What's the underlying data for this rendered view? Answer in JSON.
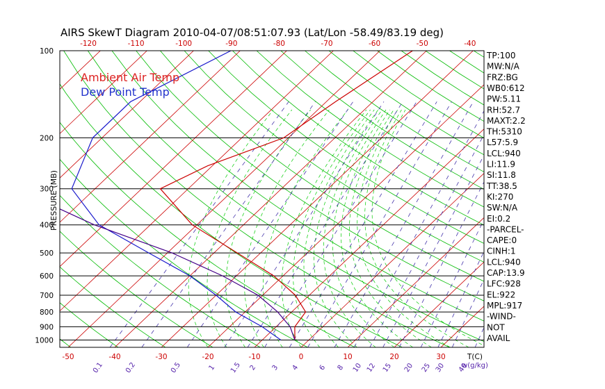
{
  "chart_data": {
    "type": "line",
    "title": "AIRS SkewT Diagram 2010-04-07/08:51:07.93 (Lat/Lon -58.49/83.19 deg)",
    "ylabel": "PRESSURE (MB)",
    "xlabel_unit": "T(C)",
    "mixing_ratio_unit": "w(g/kg)",
    "pressure_ticks": [
      100,
      200,
      300,
      400,
      500,
      600,
      700,
      800,
      900,
      1000
    ],
    "top_temp_ticks": [
      "-120",
      "-110",
      "-100",
      "-90",
      "-80",
      "-70",
      "-60",
      "-50",
      "-40"
    ],
    "bottom_temp_ticks": [
      "-50",
      "-40",
      "-30",
      "-20",
      "-10",
      "0",
      "10",
      "20",
      "30"
    ],
    "mixing_ratio_ticks": [
      "0.1",
      "0.2",
      "0.5",
      "1",
      "1.5",
      "2",
      "3",
      "4",
      "6",
      "8",
      "10",
      "12",
      "15",
      "20",
      "25",
      "30",
      "40"
    ],
    "legend": [
      {
        "name": "Ambient Air Temp",
        "color": "#dd2222"
      },
      {
        "name": "Dew Point Temp",
        "color": "#2233cc"
      }
    ],
    "series": [
      {
        "name": "Ambient Air Temp",
        "color": "#cc0000",
        "points": [
          [
            100,
            -43
          ],
          [
            150,
            -48
          ],
          [
            200,
            -51
          ],
          [
            250,
            -61
          ],
          [
            300,
            -66
          ],
          [
            400,
            -51
          ],
          [
            500,
            -35
          ],
          [
            600,
            -22
          ],
          [
            700,
            -13
          ],
          [
            800,
            -7
          ],
          [
            900,
            -6
          ],
          [
            1000,
            -3
          ]
        ]
      },
      {
        "name": "Dew Point Temp",
        "color": "#1a1acc",
        "points": [
          [
            100,
            -82
          ],
          [
            150,
            -92
          ],
          [
            200,
            -92
          ],
          [
            300,
            -85
          ],
          [
            400,
            -71
          ],
          [
            500,
            -54
          ],
          [
            600,
            -40
          ],
          [
            700,
            -30
          ],
          [
            800,
            -22
          ],
          [
            900,
            -13
          ],
          [
            1000,
            -6
          ]
        ]
      },
      {
        "name": "Parcel",
        "color": "#440088",
        "points": [
          [
            100,
            -140
          ],
          [
            150,
            -126
          ],
          [
            200,
            -119
          ],
          [
            300,
            -97
          ],
          [
            400,
            -72
          ],
          [
            500,
            -49
          ],
          [
            600,
            -33
          ],
          [
            700,
            -21
          ],
          [
            800,
            -13
          ],
          [
            900,
            -7
          ],
          [
            1000,
            -3
          ]
        ]
      }
    ],
    "grid": true
  },
  "stats": [
    "TP:100",
    "MW:N/A",
    "FRZ:BG",
    "WB0:612",
    "PW:5.11",
    "RH:52.7",
    "MAXT:2.2",
    "TH:5310",
    "L57:5.9",
    "LCL:940",
    "LI:11.9",
    "SI:11.8",
    "TT:38.5",
    "KI:270",
    "SW:N/A",
    "EI:0.2",
    "-PARCEL-",
    "CAPE:0",
    "CINH:1",
    "LCL:940",
    "CAP:13.9",
    "LFC:928",
    "EL:922",
    "MPL:917",
    "-WIND-",
    "NOT",
    "AVAIL"
  ],
  "colors": {
    "dry_adiabat": "#00bb00",
    "isotherm": "#cc0000",
    "mixing_ratio": "#4433aa",
    "moist_adiabat": "#00cc00"
  }
}
